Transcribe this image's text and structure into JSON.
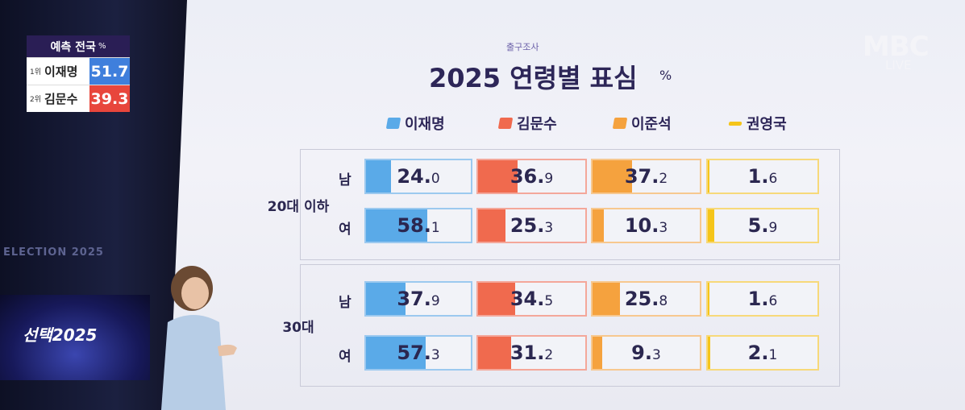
{
  "broadcast": {
    "logo": "MBC",
    "live": "LIVE",
    "stage_text": "ELECTION 2025",
    "monitor_title": "선택2025"
  },
  "scoreboard": {
    "header": "예측 전국",
    "unit": "%",
    "rows": [
      {
        "rank": "1위",
        "name": "이재명",
        "value": 51.7,
        "color": "#3f7fdc"
      },
      {
        "rank": "2위",
        "name": "김문수",
        "value": 39.3,
        "color": "#e8463c"
      }
    ]
  },
  "board": {
    "source": "출구조사",
    "title": "2025 연령별 표심",
    "unit": "%",
    "candidates": [
      {
        "name": "이재명",
        "color": "#5aaae8",
        "border": "#9cc9ef"
      },
      {
        "name": "김문수",
        "color": "#f06a4e",
        "border": "#f4a79a"
      },
      {
        "name": "이준석",
        "color": "#f5a23e",
        "border": "#f7c88f"
      },
      {
        "name": "권영국",
        "color": "#f5c51a",
        "border": "#f7d97a"
      }
    ],
    "scale_max": 100,
    "groups": [
      {
        "label": "20대 이하",
        "rows": [
          {
            "label": "남",
            "values": [
              24.0,
              36.9,
              37.2,
              1.6
            ],
            "value_labels": [
              "24.0",
              "36.9",
              "37.2",
              "1.6"
            ]
          },
          {
            "label": "여",
            "values": [
              58.1,
              25.3,
              10.3,
              5.9
            ],
            "value_labels": [
              "58.1",
              "25.3",
              "10.3",
              "5.9"
            ]
          }
        ]
      },
      {
        "label": "30대",
        "rows": [
          {
            "label": "남",
            "values": [
              37.9,
              34.5,
              25.8,
              1.6
            ],
            "value_labels": [
              "37.9",
              "34.5",
              "25.8",
              "1.6"
            ]
          },
          {
            "label": "여",
            "values": [
              57.3,
              31.2,
              9.3,
              2.1
            ],
            "value_labels": [
              "57.3",
              "31.2",
              "9.3",
              "2.1"
            ]
          }
        ]
      }
    ]
  }
}
